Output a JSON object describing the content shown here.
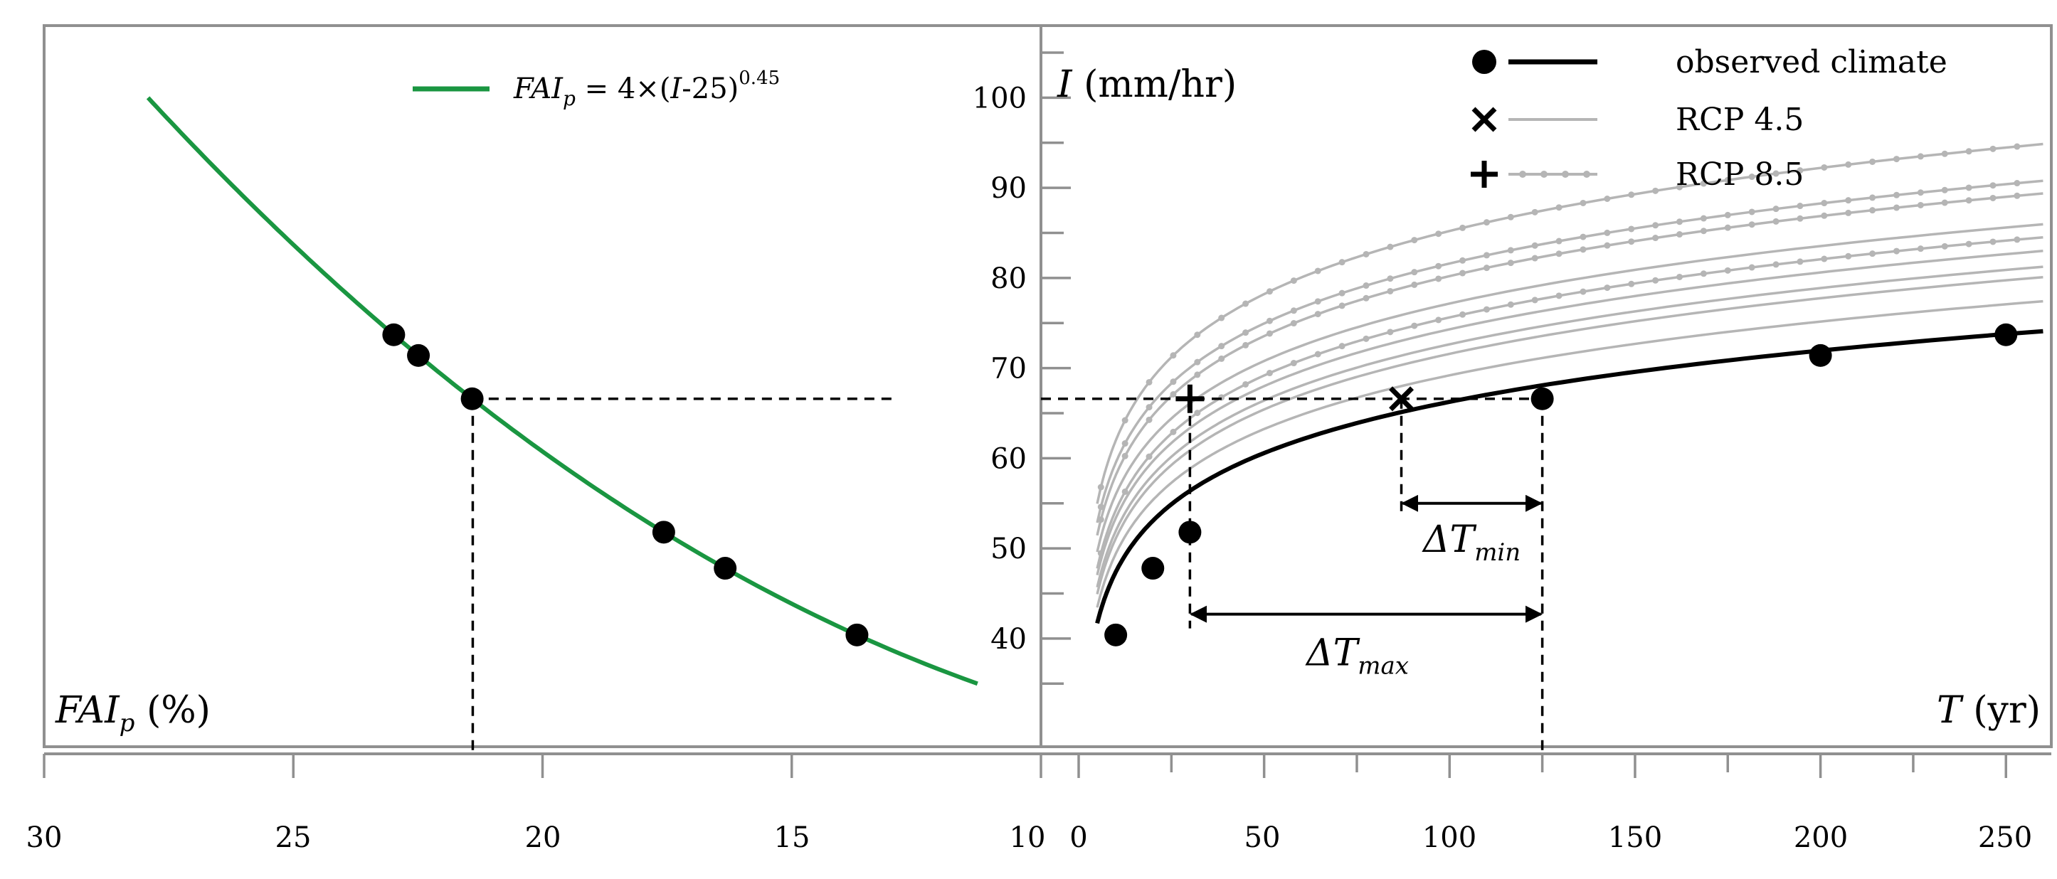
{
  "chart_data": [
    {
      "type": "line",
      "panel": "left",
      "xlabel": "FAIp (%)",
      "ylabel": "",
      "xlim": [
        30,
        10
      ],
      "x_ticks": [
        30,
        25,
        20,
        15,
        10
      ],
      "x_reversed": true,
      "legend": {
        "placement": "top-center",
        "entry": "FAIp = 4×(I-25)0.45",
        "formula_parts": [
          "FAI",
          "p",
          " = 4×(",
          "I",
          "-25)",
          "0.45"
        ]
      },
      "curve": {
        "name": "FAIp = 4×(I-25)^0.45",
        "color": "#1a9641",
        "formula": {
          "coefficient": 4,
          "offset": 25,
          "exponent": 0.45
        },
        "I_range": [
          100,
          35
        ]
      },
      "points_I": [
        73.7,
        71.4,
        66.6,
        51.8,
        47.8,
        40.4
      ],
      "reference_I": 66.6,
      "reference_FAI": 21.4,
      "reference_line_x_end": 13,
      "ylim": [
        28,
        108
      ]
    },
    {
      "type": "line",
      "panel": "right",
      "title": "",
      "ylabel": "I (mm/hr)",
      "xlabel": "T (yr)",
      "xlim": [
        0,
        260
      ],
      "ylim": [
        28,
        108
      ],
      "x_ticks": [
        0,
        50,
        100,
        150,
        200,
        250
      ],
      "x_tick_labels": [
        "0",
        "50",
        "100",
        "150",
        "200",
        "250"
      ],
      "y_ticks": [
        40,
        50,
        60,
        70,
        80,
        90,
        100
      ],
      "left_axis_labels": [
        "30",
        "25",
        "20",
        "15",
        "10"
      ],
      "legend": {
        "placement": "top-right",
        "entries": [
          {
            "label": "observed climate",
            "marker": "circle",
            "style": "solid-black"
          },
          {
            "label": "RCP 4.5",
            "marker": "x",
            "style": "solid-gray"
          },
          {
            "label": "RCP 8.5",
            "marker": "plus",
            "style": "dotted-gray"
          }
        ]
      },
      "idf_model": "I = a + b·ln(T)",
      "series": [
        {
          "name": "observed climate",
          "color": "#000000",
          "a": 28.5,
          "b": 8.2,
          "T_range": [
            5,
            260
          ]
        },
        {
          "name": "RCP 4.5 #1",
          "color": "#b5b5b5",
          "a": 29.6,
          "b": 8.6,
          "T_range": [
            5,
            260
          ]
        },
        {
          "name": "RCP 4.5 #2",
          "color": "#b5b5b5",
          "a": 30.6,
          "b": 8.9,
          "T_range": [
            5,
            260
          ]
        },
        {
          "name": "RCP 4.5 #3",
          "color": "#b5b5b5",
          "a": 31.2,
          "b": 9.0,
          "T_range": [
            5,
            260
          ]
        },
        {
          "name": "RCP 4.5 #4",
          "color": "#b5b5b5",
          "a": 32.4,
          "b": 9.1,
          "T_range": [
            5,
            260
          ]
        },
        {
          "name": "RCP 4.5 #5",
          "color": "#b5b5b5",
          "a": 34.8,
          "b": 9.2,
          "T_range": [
            5,
            260
          ]
        },
        {
          "name": "RCP 8.5 #1",
          "color": "#b5b5b5",
          "a": 32.8,
          "b": 9.3,
          "T_range": [
            5,
            260
          ],
          "dotted": true
        },
        {
          "name": "RCP 8.5 #2",
          "color": "#b5b5b5",
          "a": 36.0,
          "b": 9.6,
          "T_range": [
            5,
            260
          ],
          "dotted": true
        },
        {
          "name": "RCP 8.5 #3",
          "color": "#b5b5b5",
          "a": 37.4,
          "b": 9.6,
          "T_range": [
            5,
            260
          ],
          "dotted": true
        },
        {
          "name": "RCP 8.5 #4",
          "color": "#b5b5b5",
          "a": 38.7,
          "b": 10.1,
          "T_range": [
            5,
            260
          ],
          "dotted": true
        }
      ],
      "observed_points": [
        {
          "T": 10,
          "I": 40.4
        },
        {
          "T": 20,
          "I": 47.8
        },
        {
          "T": 30,
          "I": 51.8
        },
        {
          "T": 125,
          "I": 66.6
        },
        {
          "T": 200,
          "I": 71.4
        },
        {
          "T": 250,
          "I": 73.7
        }
      ],
      "markers": [
        {
          "type": "plus",
          "T": 30,
          "I": 66.6,
          "label": "RCP 8.5"
        },
        {
          "type": "x",
          "T": 87,
          "I": 66.6,
          "label": "RCP 4.5"
        }
      ],
      "reference_I": 66.6,
      "annotations": [
        {
          "label": "ΔTmin",
          "symbol": "ΔT",
          "subscript": "min",
          "from_T": 87,
          "to_T": 125,
          "arrow_I": 55
        },
        {
          "label": "ΔTmax",
          "symbol": "ΔT",
          "subscript": "max",
          "from_T": 30,
          "to_T": 125,
          "arrow_I": 42.7
        }
      ],
      "y_axis_title_parts": [
        "I",
        " (mm/hr)"
      ],
      "x_axis_title_parts": [
        "T",
        " (yr)"
      ],
      "left_axis_title_parts": [
        "FAI",
        "p",
        " (%)"
      ]
    }
  ]
}
